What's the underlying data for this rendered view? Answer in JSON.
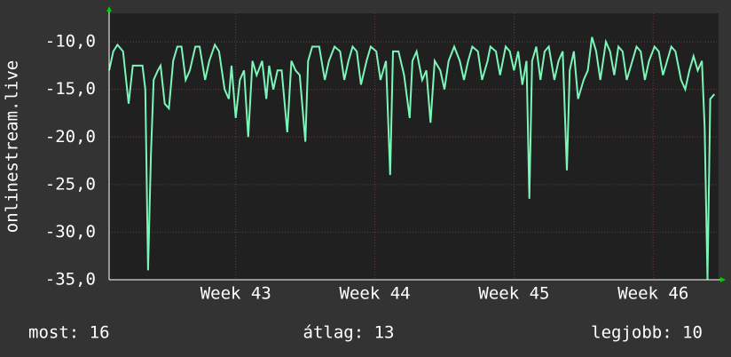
{
  "chart_data": {
    "type": "line",
    "ylabel": "onlinestream.live",
    "color": "#7cf5b8",
    "grid": true,
    "xlim": [
      42.09,
      46.47
    ],
    "ylim": [
      -35,
      -7
    ],
    "xticks": [
      {
        "value": 43,
        "label": "Week 43"
      },
      {
        "value": 44,
        "label": "Week 44"
      },
      {
        "value": 45,
        "label": "Week 45"
      },
      {
        "value": 46,
        "label": "Week 46"
      }
    ],
    "yticks": [
      {
        "value": -35,
        "label": "-35,0"
      },
      {
        "value": -30,
        "label": "-30,0"
      },
      {
        "value": -25,
        "label": "-25,0"
      },
      {
        "value": -20,
        "label": "-20,0"
      },
      {
        "value": -15,
        "label": "-15,0"
      },
      {
        "value": -10,
        "label": "-10,0"
      }
    ],
    "x": [
      42.09,
      42.12,
      42.15,
      42.19,
      42.23,
      42.26,
      42.33,
      42.35,
      42.37,
      42.39,
      42.41,
      42.44,
      42.46,
      42.49,
      42.52,
      42.55,
      42.58,
      42.61,
      42.64,
      42.67,
      42.71,
      42.74,
      42.78,
      42.81,
      42.85,
      42.88,
      42.92,
      42.95,
      42.97,
      43.0,
      43.03,
      43.06,
      43.09,
      43.12,
      43.15,
      43.19,
      43.22,
      43.24,
      43.27,
      43.3,
      43.33,
      43.37,
      43.4,
      43.43,
      43.46,
      43.5,
      43.52,
      43.55,
      43.6,
      43.64,
      43.67,
      43.71,
      43.75,
      43.78,
      43.81,
      43.84,
      43.87,
      43.9,
      43.94,
      43.97,
      44.01,
      44.04,
      44.08,
      44.11,
      44.13,
      44.17,
      44.21,
      44.25,
      44.27,
      44.3,
      44.34,
      44.37,
      44.4,
      44.43,
      44.47,
      44.5,
      44.53,
      44.57,
      44.61,
      44.64,
      44.67,
      44.7,
      44.74,
      44.77,
      44.81,
      44.83,
      44.87,
      44.9,
      44.94,
      44.97,
      45.0,
      45.03,
      45.06,
      45.09,
      45.11,
      45.13,
      45.16,
      45.19,
      45.22,
      45.25,
      45.29,
      45.32,
      45.35,
      45.38,
      45.4,
      45.43,
      45.46,
      45.5,
      45.53,
      45.56,
      45.59,
      45.62,
      45.66,
      45.69,
      45.72,
      45.75,
      45.78,
      45.81,
      45.85,
      45.88,
      45.91,
      45.94,
      45.97,
      46.01,
      46.04,
      46.07,
      46.1,
      46.13,
      46.16,
      46.2,
      46.23,
      46.26,
      46.29,
      46.32,
      46.35,
      46.37,
      46.39,
      46.41,
      46.44
    ],
    "values": [
      -13,
      -11,
      -10.3,
      -11,
      -16.5,
      -12.5,
      -12.5,
      -15,
      -34,
      -22,
      -14,
      -13,
      -12.5,
      -16.5,
      -17,
      -12,
      -10.5,
      -10.5,
      -14,
      -13,
      -10.5,
      -10.5,
      -14,
      -12,
      -10.3,
      -11,
      -15,
      -16,
      -12.5,
      -18,
      -14,
      -13,
      -20,
      -12,
      -13.5,
      -12,
      -16,
      -12.5,
      -15,
      -13,
      -13,
      -19.5,
      -12,
      -13,
      -13.5,
      -20.5,
      -12,
      -10.5,
      -10.5,
      -14,
      -12,
      -10.5,
      -11,
      -14,
      -12,
      -10.5,
      -11,
      -14.5,
      -12,
      -10.5,
      -11,
      -14,
      -12,
      -24,
      -11,
      -11,
      -13.5,
      -18,
      -12,
      -11,
      -14,
      -13,
      -18.5,
      -12,
      -13,
      -15,
      -12,
      -10.5,
      -12,
      -14,
      -12,
      -10.5,
      -11,
      -14,
      -12,
      -10.5,
      -11,
      -13.5,
      -10.5,
      -11,
      -13,
      -11,
      -14.5,
      -12,
      -26.5,
      -12,
      -10.5,
      -14,
      -11,
      -10.5,
      -14,
      -12,
      -11,
      -23.5,
      -13,
      -11,
      -16,
      -14,
      -13,
      -9.5,
      -11,
      -14,
      -10,
      -11,
      -13.5,
      -10.5,
      -11,
      -14,
      -12,
      -10.5,
      -11,
      -14,
      -12,
      -10.5,
      -11,
      -13.5,
      -12,
      -10.5,
      -11,
      -14,
      -15,
      -13,
      -11.5,
      -13,
      -12,
      -19,
      -35,
      -16,
      -15.5
    ],
    "annotations": [
      "most: 16",
      "átlag: 13",
      "legjobb: 10"
    ]
  }
}
